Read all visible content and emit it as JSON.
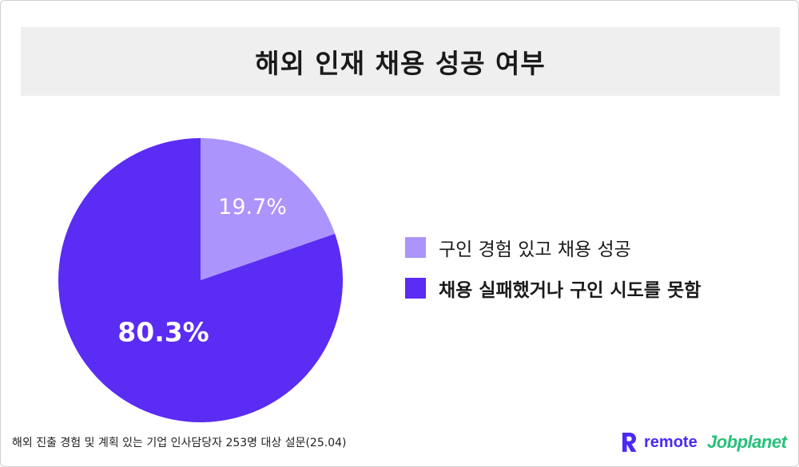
{
  "header": {
    "title": "해외 인재 채용 성공 여부"
  },
  "chart_data": {
    "type": "pie",
    "title": "해외 인재 채용 성공 여부",
    "slices": [
      {
        "label": "구인 경험 있고 채용 성공",
        "value": 19.7,
        "display": "19.7%",
        "color": "#ab94fb"
      },
      {
        "label": "채용 실패했거나 구인 시도를 못함",
        "value": 80.3,
        "display": "80.3%",
        "color": "#5b2cf3"
      }
    ],
    "start_angle": "12 o'clock",
    "direction": "clockwise",
    "legend_position": "right"
  },
  "footer": {
    "note": "해외 진출 경험 및 계획 있는 기업 인사담당자 253명 대상 설문(25.04)",
    "brand_remote": "remote",
    "brand_jobplanet": "Jobplanet"
  },
  "colors": {
    "title_bg": "#efefef",
    "remote_brand": "#4a2af5",
    "jobplanet_brand": "#27c07a"
  }
}
